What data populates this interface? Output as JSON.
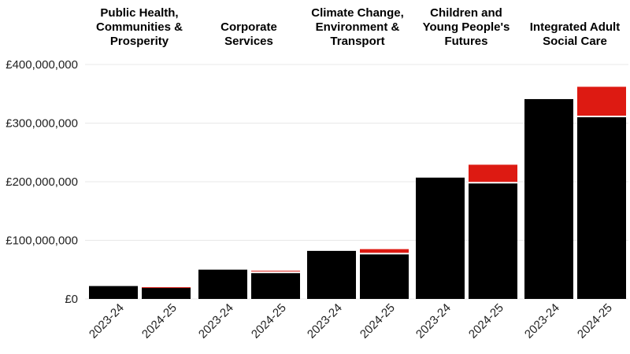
{
  "chart_data": {
    "type": "bar",
    "stacked": true,
    "faceted": true,
    "y_tick_labels": [
      "£0",
      "£100,000,000",
      "£200,000,000",
      "£300,000,000",
      "£400,000,000"
    ],
    "y_ticks": [
      0,
      100000000,
      200000000,
      300000000,
      400000000
    ],
    "ylim": [
      0,
      400000000
    ],
    "grid": true,
    "colors": {
      "base": "#000000",
      "increase": "#dd1a12"
    },
    "panels": [
      {
        "title_lines": [
          "Public Health,",
          "Communities &",
          "Prosperity"
        ],
        "categories": [
          "2023-24",
          "2024-25"
        ],
        "base": [
          22000000,
          19000000
        ],
        "increase": [
          0,
          1000000
        ]
      },
      {
        "title_lines": [
          "Corporate",
          "Services"
        ],
        "categories": [
          "2023-24",
          "2024-25"
        ],
        "base": [
          50000000,
          44000000
        ],
        "increase": [
          0,
          4000000
        ]
      },
      {
        "title_lines": [
          "Climate Change,",
          "Environment &",
          "Transport"
        ],
        "categories": [
          "2023-24",
          "2024-25"
        ],
        "base": [
          82000000,
          76000000
        ],
        "increase": [
          0,
          9000000
        ]
      },
      {
        "title_lines": [
          "Children and",
          "Young People's",
          "Futures"
        ],
        "categories": [
          "2023-24",
          "2024-25"
        ],
        "base": [
          207000000,
          197000000
        ],
        "increase": [
          0,
          32000000
        ]
      },
      {
        "title_lines": [
          "Integrated Adult",
          "Social Care"
        ],
        "categories": [
          "2023-24",
          "2024-25"
        ],
        "base": [
          341000000,
          310000000
        ],
        "increase": [
          0,
          52000000
        ]
      }
    ]
  }
}
